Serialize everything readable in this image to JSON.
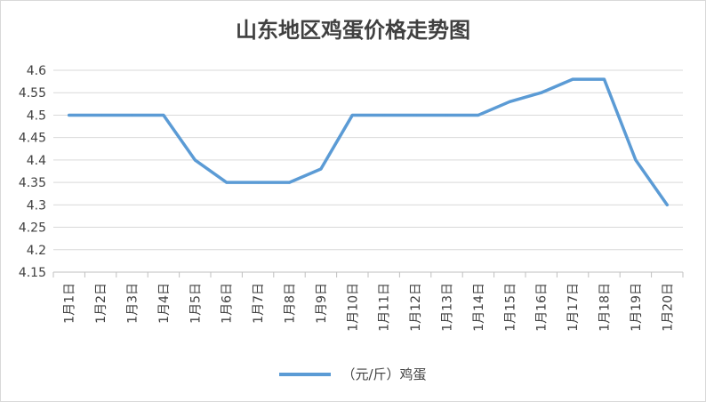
{
  "chart_data": {
    "type": "line",
    "title": "山东地区鸡蛋价格走势图",
    "categories": [
      "1月1日",
      "1月2日",
      "1月3日",
      "1月4日",
      "1月5日",
      "1月6日",
      "1月7日",
      "1月8日",
      "1月9日",
      "1月10日",
      "1月11日",
      "1月12日",
      "1月13日",
      "1月14日",
      "1月15日",
      "1月16日",
      "1月17日",
      "1月18日",
      "1月19日",
      "1月20日"
    ],
    "series": [
      {
        "name": "（元/斤）鸡蛋",
        "values": [
          4.5,
          4.5,
          4.5,
          4.5,
          4.4,
          4.35,
          4.35,
          4.35,
          4.38,
          4.5,
          4.5,
          4.5,
          4.5,
          4.5,
          4.53,
          4.55,
          4.58,
          4.58,
          4.4,
          4.3
        ],
        "color": "#5b9bd5"
      }
    ],
    "yticks": [
      "4.15",
      "4.2",
      "4.25",
      "4.3",
      "4.35",
      "4.4",
      "4.45",
      "4.5",
      "4.55",
      "4.6"
    ],
    "ylim": [
      4.15,
      4.6
    ],
    "grid": true,
    "legend": "bottom"
  }
}
